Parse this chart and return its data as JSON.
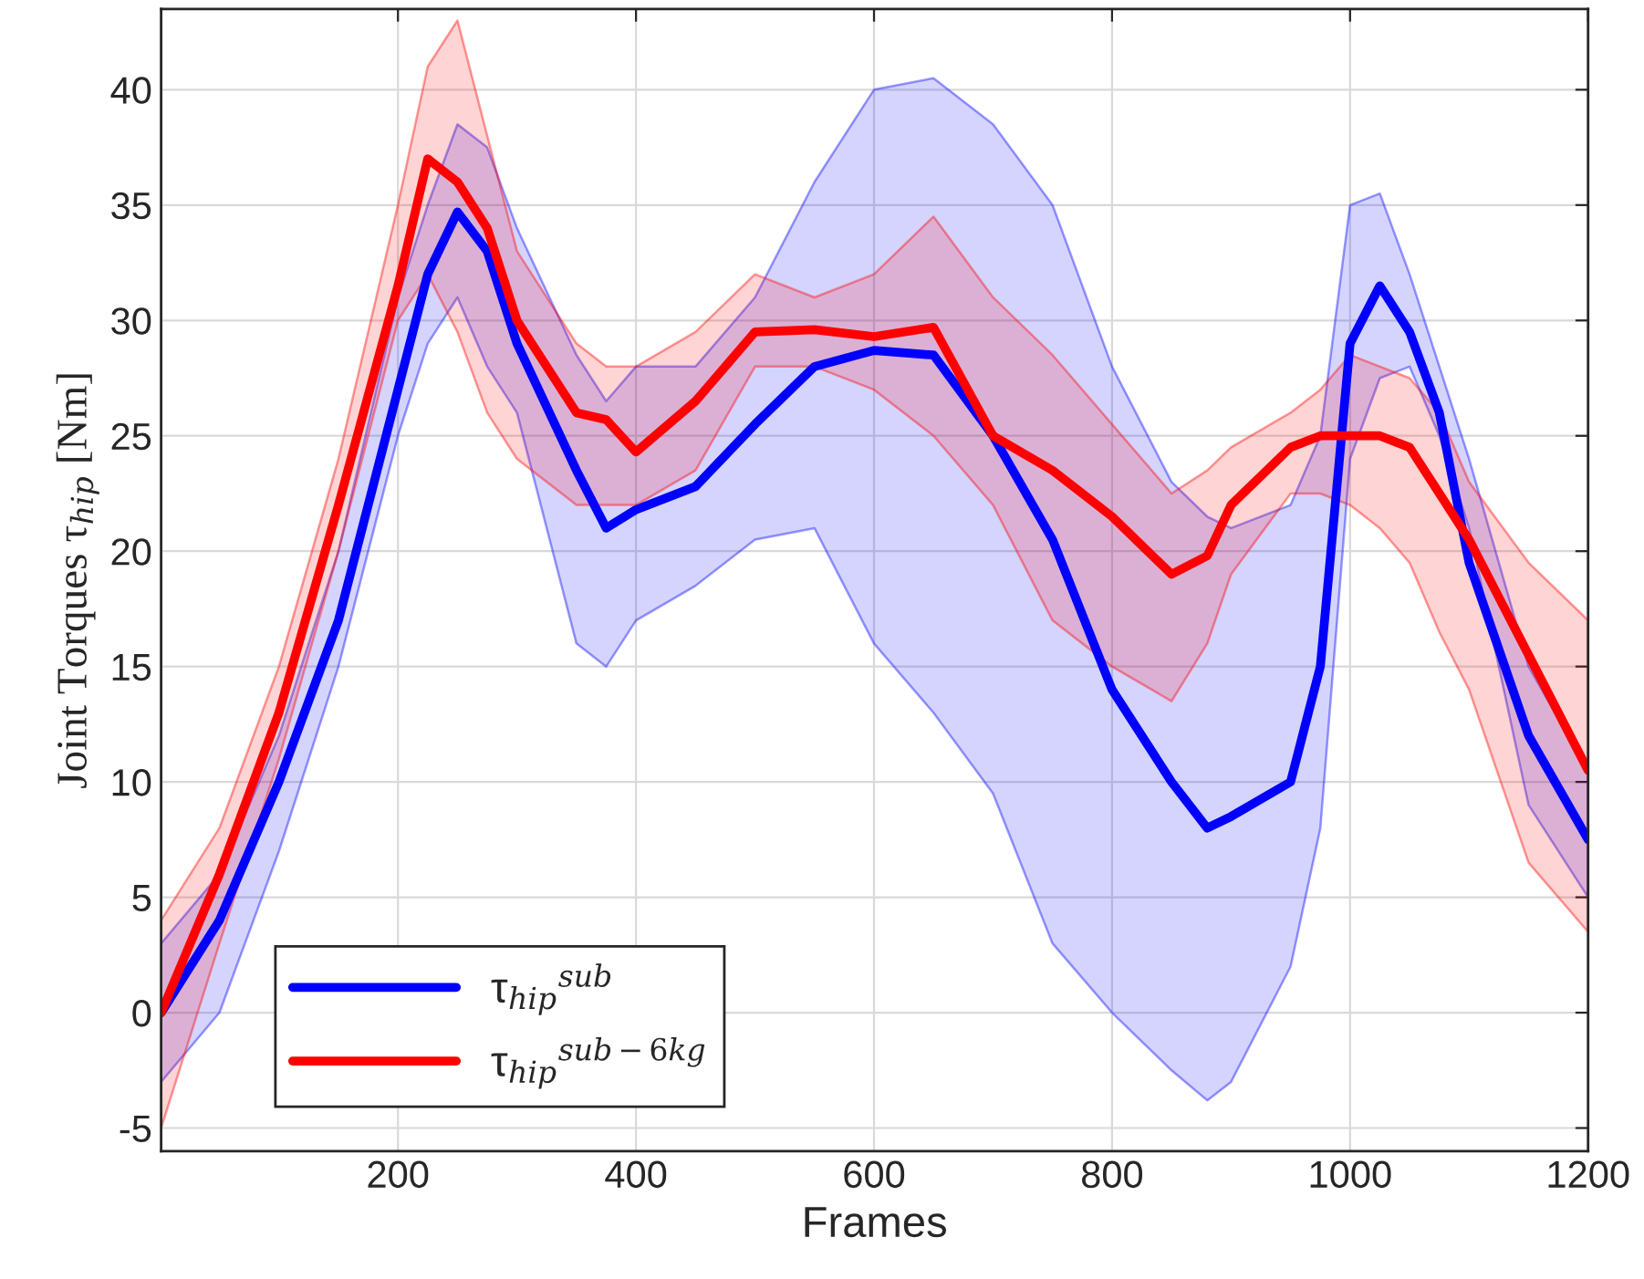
{
  "chart_data": {
    "type": "line",
    "xlabel": "Frames",
    "ylabel": "Joint Torques τ$_{hip}$ [Nm]",
    "xlim": [
      1,
      1200
    ],
    "xticks": [
      200,
      400,
      600,
      800,
      1000,
      1200
    ],
    "ylim": [
      -6,
      43.5
    ],
    "yticks": [
      -5,
      0,
      5,
      10,
      15,
      20,
      25,
      30,
      35,
      40
    ],
    "grid": true,
    "legend": "bottom left",
    "line_style": "solid",
    "marker": "none",
    "series": [
      {
        "name": "τ$_{hip}$$^{sub}$",
        "color": "#0000ff",
        "x": [
          1,
          50,
          100,
          150,
          200,
          225,
          250,
          275,
          300,
          350,
          375,
          400,
          450,
          500,
          550,
          600,
          650,
          700,
          750,
          800,
          850,
          880,
          900,
          950,
          975,
          1000,
          1025,
          1050,
          1075,
          1100,
          1150,
          1200
        ],
        "values": [
          0,
          4,
          10,
          17,
          27,
          32,
          34.7,
          33,
          29,
          23.5,
          21,
          21.8,
          22.8,
          25.5,
          28,
          28.7,
          28.5,
          25,
          20.5,
          14,
          10,
          8,
          8.5,
          10,
          15,
          29,
          31.5,
          29.5,
          26,
          19.5,
          12,
          7.5
        ],
        "upper": [
          3,
          6,
          12,
          20,
          31,
          35,
          38.5,
          37.5,
          34,
          28.5,
          26.5,
          28,
          28,
          31,
          36,
          40,
          40.5,
          38.5,
          35,
          28,
          23,
          21.5,
          21,
          22,
          25,
          35,
          35.5,
          32,
          28,
          24,
          15,
          10.5
        ],
        "lower": [
          -3,
          0,
          7,
          15,
          25,
          29,
          31,
          28,
          26,
          16,
          15,
          17,
          18.5,
          20.5,
          21,
          16,
          13,
          9.5,
          3,
          0,
          -2.5,
          -3.8,
          -3,
          2,
          8,
          24,
          27.5,
          28,
          25,
          21,
          9,
          5
        ]
      },
      {
        "name": "τ$_{hip}$$^{sub−6kg}$",
        "color": "#ff0000",
        "x": [
          1,
          50,
          100,
          150,
          200,
          225,
          250,
          275,
          300,
          350,
          375,
          400,
          450,
          500,
          550,
          600,
          650,
          700,
          750,
          800,
          850,
          880,
          900,
          950,
          975,
          1000,
          1025,
          1050,
          1075,
          1100,
          1150,
          1200
        ],
        "values": [
          0,
          6,
          13,
          22,
          31.5,
          37,
          36,
          34,
          30,
          26,
          25.7,
          24.3,
          26.5,
          29.5,
          29.6,
          29.3,
          29.7,
          25,
          23.5,
          21.5,
          19,
          19.8,
          22,
          24.5,
          25,
          25,
          25,
          24.5,
          22.5,
          20.5,
          15.5,
          10.5
        ],
        "upper": [
          4,
          8,
          15,
          24,
          35,
          41,
          43,
          38,
          33,
          29,
          28,
          28,
          29.5,
          32,
          31,
          32,
          34.5,
          31,
          28.5,
          25.5,
          22.5,
          23.5,
          24.5,
          26,
          27,
          28.5,
          28,
          27.5,
          26,
          23,
          19.5,
          17
        ],
        "lower": [
          -5,
          3,
          11,
          20,
          30,
          32,
          29.5,
          26,
          24,
          22,
          22,
          22,
          23.5,
          28,
          28,
          27,
          25,
          22,
          17,
          15,
          13.5,
          16,
          19,
          22.5,
          22.5,
          22,
          21,
          19.5,
          16.5,
          14,
          6.5,
          3.5
        ]
      }
    ]
  }
}
